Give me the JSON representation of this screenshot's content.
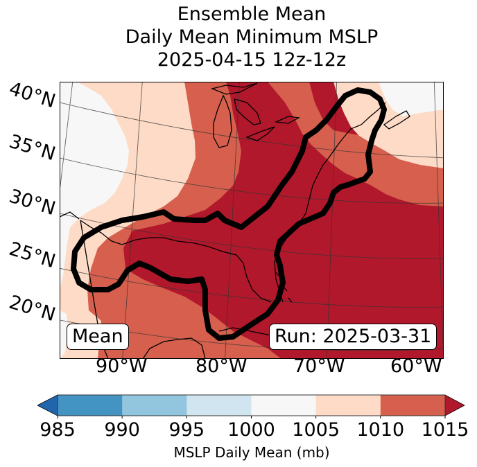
{
  "title": {
    "line1": "Ensemble Mean",
    "line2": "Daily Mean Minimum MSLP",
    "line3": "2025-04-15 12z-12z"
  },
  "map": {
    "lat_labels": [
      "40°N",
      "35°N",
      "30°N",
      "25°N",
      "20°N"
    ],
    "lon_labels": [
      "90°W",
      "80°W",
      "70°W",
      "60°W"
    ],
    "mean_box": "Mean",
    "run_box": "Run: 2025-03-31",
    "region": "Eastern North America, Gulf of Mexico and Western Atlantic",
    "contour_description": "Thick black probability/threshold contour enclosing Gulf Coast, Florida and US East Coast to Nova Scotia",
    "shading": [
      {
        "area": "Northwest interior (Plains)",
        "bin": "1000-1005"
      },
      {
        "area": "Central interior",
        "bin": "1005-1010"
      },
      {
        "area": "Mississippi Valley",
        "bin": "1010-1015"
      },
      {
        "area": "Great Lakes / Ohio Valley / Southeast / Gulf / Western Atlantic",
        "bin": ">1015"
      },
      {
        "area": "Western Gulf / Mexico",
        "bin": "1010-1015"
      },
      {
        "area": "New England / Maritimes",
        "bin": "1005-1010"
      },
      {
        "area": "Far northeast corner",
        "bin": "1000-1005"
      }
    ]
  },
  "colorbar": {
    "label": "MSLP Daily Mean (mb)",
    "ticks": [
      "985",
      "990",
      "995",
      "1000",
      "1005",
      "1010",
      "1015"
    ],
    "colors": {
      "under": "#2166ac",
      "985_990": "#4393c3",
      "990_995": "#92c5de",
      "995_1000": "#d1e5f0",
      "1000_1005": "#f7f7f7",
      "1005_1010": "#fddbc7",
      "1010_1015": "#d6604d",
      "over": "#b2182b"
    }
  }
}
